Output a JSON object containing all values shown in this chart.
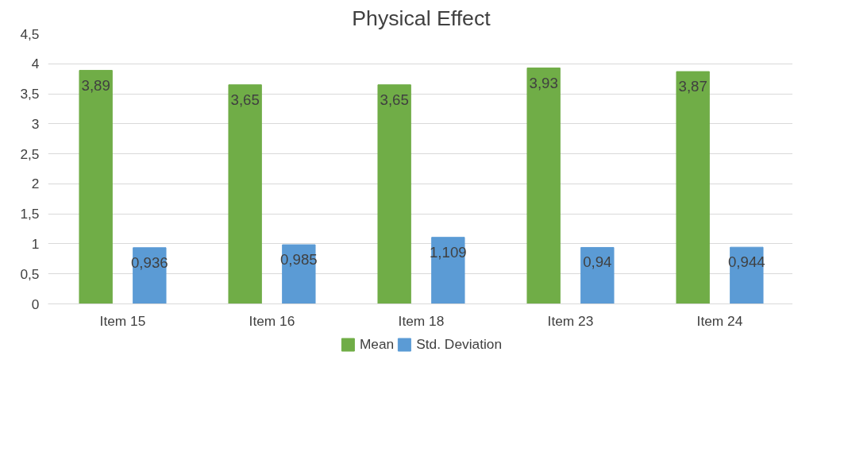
{
  "chart_data": {
    "type": "bar",
    "title": "Physical Effect",
    "categories": [
      "Item 15",
      "Item 16",
      "Item 18",
      "Item 23",
      "Item 24"
    ],
    "series": [
      {
        "name": "Mean",
        "color": "#70ad47",
        "values": [
          3.89,
          3.65,
          3.65,
          3.93,
          3.87
        ],
        "value_labels": [
          "3,89",
          "3,65",
          "3,65",
          "3,93",
          "3,87"
        ]
      },
      {
        "name": "Std. Deviation",
        "color": "#5b9bd5",
        "values": [
          0.936,
          0.985,
          1.109,
          0.94,
          0.944
        ],
        "value_labels": [
          "0,936",
          "0,985",
          "1,109",
          "0,94",
          "0,944"
        ]
      }
    ],
    "ylim": [
      0,
      4.5
    ],
    "yticks": [
      0,
      {
        "value": 0.5,
        "label": "0,5"
      },
      1,
      {
        "value": 1.5,
        "label": "1,5"
      },
      2,
      {
        "value": 2.5,
        "label": "2,5"
      },
      3,
      {
        "value": 3.5,
        "label": "3,5"
      },
      4,
      {
        "value": 4.5,
        "label": "4,5"
      }
    ],
    "grid": "y",
    "legend": "bottom"
  }
}
